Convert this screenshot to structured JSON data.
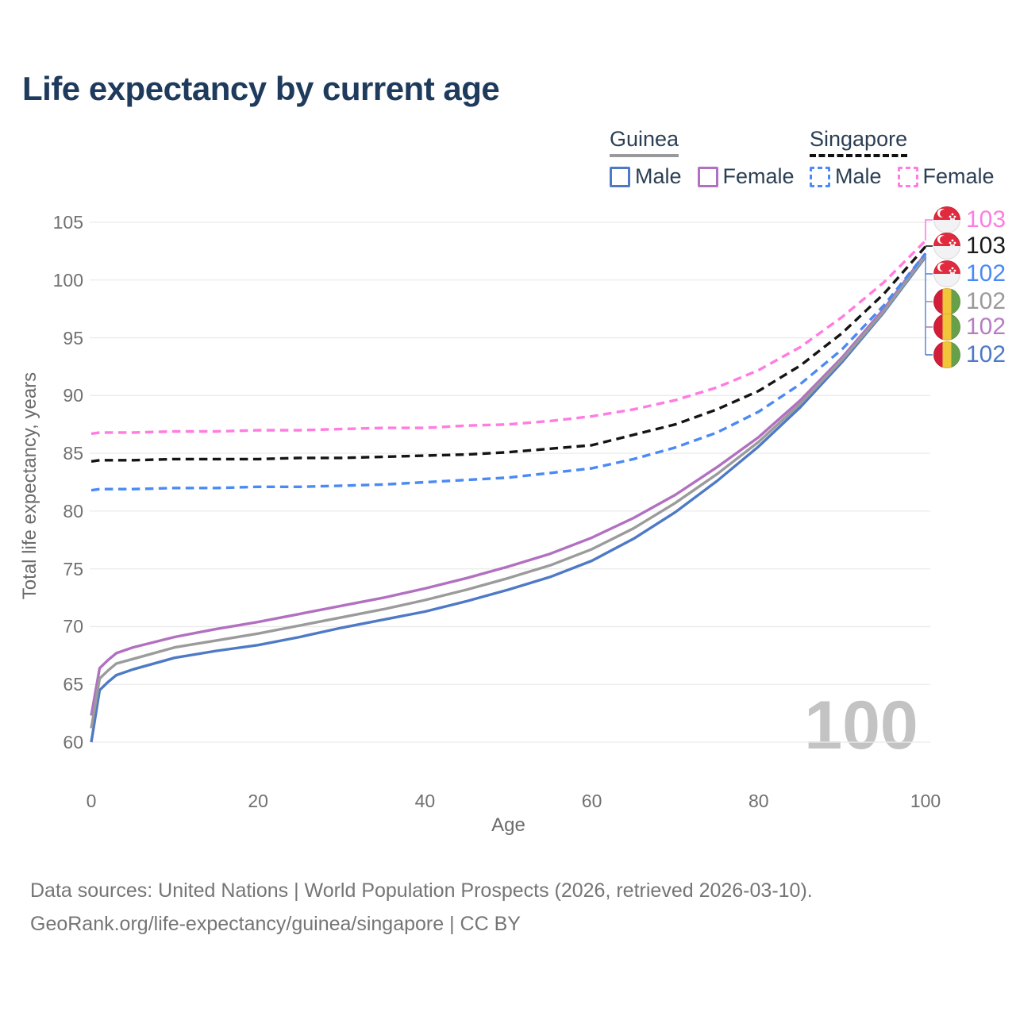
{
  "title": "Life expectancy by current age",
  "legend": {
    "groups": [
      {
        "name": "Guinea",
        "line_style": "solid",
        "items": [
          {
            "label": "Male"
          },
          {
            "label": "Female"
          }
        ]
      },
      {
        "name": "Singapore",
        "line_style": "dashed",
        "items": [
          {
            "label": "Male"
          },
          {
            "label": "Female"
          }
        ]
      }
    ]
  },
  "chart_data": {
    "type": "line",
    "title": "Life expectancy by current age",
    "xlabel": "Age",
    "ylabel": "Total life expectancy, years",
    "xlim": [
      0,
      100
    ],
    "ylim": [
      60,
      105
    ],
    "x_ticks": [
      0,
      20,
      40,
      60,
      80,
      100
    ],
    "y_ticks": [
      60,
      65,
      70,
      75,
      80,
      85,
      90,
      95,
      100,
      105
    ],
    "grid": "horizontal",
    "legend_position": "top-right",
    "x": [
      0,
      1,
      2,
      3,
      5,
      10,
      15,
      20,
      25,
      30,
      35,
      40,
      45,
      50,
      55,
      60,
      65,
      70,
      75,
      80,
      85,
      90,
      95,
      100
    ],
    "series": [
      {
        "name": "Guinea Male",
        "color": "#4e79c5",
        "dash": false,
        "values": [
          60.0,
          64.5,
          65.2,
          65.8,
          66.3,
          67.3,
          67.9,
          68.4,
          69.1,
          69.9,
          70.6,
          71.3,
          72.2,
          73.2,
          74.3,
          75.7,
          77.6,
          79.9,
          82.6,
          85.6,
          89.0,
          92.9,
          97.2,
          102.0
        ]
      },
      {
        "name": "Guinea Female",
        "color": "#b170c0",
        "dash": false,
        "values": [
          62.3,
          66.4,
          67.1,
          67.7,
          68.2,
          69.1,
          69.8,
          70.4,
          71.1,
          71.8,
          72.5,
          73.3,
          74.2,
          75.2,
          76.3,
          77.7,
          79.4,
          81.4,
          83.8,
          86.4,
          89.6,
          93.3,
          97.5,
          102.3
        ]
      },
      {
        "name": "Guinea Both sexes",
        "color": "#9b9b9b",
        "dash": false,
        "values": [
          61.2,
          65.5,
          66.2,
          66.8,
          67.2,
          68.2,
          68.8,
          69.4,
          70.1,
          70.8,
          71.5,
          72.3,
          73.2,
          74.2,
          75.3,
          76.7,
          78.5,
          80.7,
          83.2,
          86.0,
          89.3,
          93.1,
          97.3,
          102.1
        ]
      },
      {
        "name": "Singapore Male",
        "color": "#4a8af4",
        "dash": true,
        "values": [
          81.8,
          81.9,
          81.9,
          81.9,
          81.9,
          82.0,
          82.0,
          82.1,
          82.1,
          82.2,
          82.3,
          82.5,
          82.7,
          82.9,
          83.3,
          83.7,
          84.5,
          85.5,
          86.8,
          88.6,
          91.0,
          94.0,
          97.8,
          102.3
        ]
      },
      {
        "name": "Singapore Both sexes",
        "color": "#141414",
        "dash": true,
        "values": [
          84.3,
          84.4,
          84.4,
          84.4,
          84.4,
          84.5,
          84.5,
          84.5,
          84.6,
          84.6,
          84.7,
          84.8,
          84.9,
          85.1,
          85.4,
          85.7,
          86.6,
          87.5,
          88.8,
          90.4,
          92.6,
          95.4,
          98.8,
          102.9
        ]
      },
      {
        "name": "Singapore Female",
        "color": "#ff7ce1",
        "dash": true,
        "values": [
          86.7,
          86.8,
          86.8,
          86.8,
          86.8,
          86.9,
          86.9,
          87.0,
          87.0,
          87.1,
          87.2,
          87.2,
          87.4,
          87.5,
          87.8,
          88.2,
          88.8,
          89.6,
          90.7,
          92.2,
          94.2,
          96.8,
          99.8,
          103.4
        ]
      }
    ]
  },
  "right_labels": [
    {
      "value": "103",
      "color": "#ff7ce1",
      "flag": "singapore",
      "series": "Singapore Female"
    },
    {
      "value": "103",
      "color": "#1a1a1a",
      "flag": "singapore",
      "series": "Singapore Both sexes"
    },
    {
      "value": "102",
      "color": "#4a8af4",
      "flag": "singapore",
      "series": "Singapore Male"
    },
    {
      "value": "102",
      "color": "#9a9a9a",
      "flag": "guinea",
      "series": "Guinea Both sexes"
    },
    {
      "value": "102",
      "color": "#b67cc4",
      "flag": "guinea",
      "series": "Guinea Female"
    },
    {
      "value": "102",
      "color": "#4e79c5",
      "flag": "guinea",
      "series": "Guinea Male"
    }
  ],
  "watermark": "100",
  "footer": {
    "line1": "Data sources: United Nations | World Population Prospects (2026, retrieved 2026-03-10).",
    "line2": "GeoRank.org/life-expectancy/guinea/singapore | CC BY"
  }
}
